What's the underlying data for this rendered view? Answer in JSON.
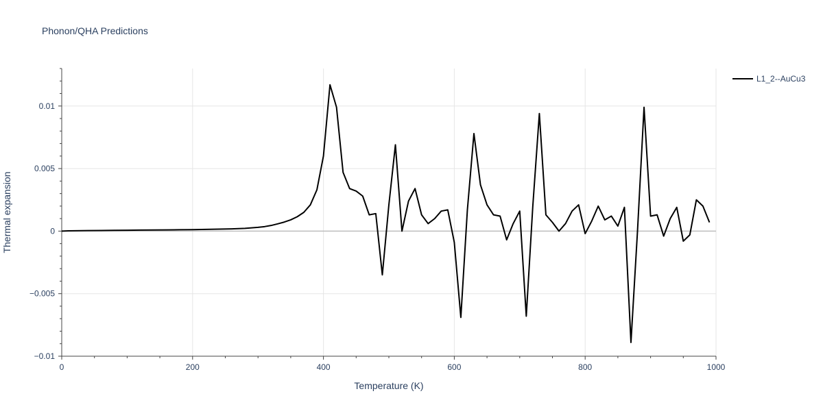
{
  "chart_data": {
    "type": "line",
    "title": "Phonon/QHA Predictions",
    "xlabel": "Temperature (K)",
    "ylabel": "Thermal expansion",
    "xlim": [
      0,
      1000
    ],
    "ylim": [
      -0.01,
      0.013
    ],
    "xticks": [
      0,
      200,
      400,
      600,
      800,
      1000
    ],
    "xtick_labels": [
      "0",
      "200",
      "400",
      "600",
      "800",
      "1000"
    ],
    "yticks": [
      -0.01,
      -0.005,
      0,
      0.005,
      0.01
    ],
    "ytick_labels": [
      "−0.01",
      "−0.005",
      "0",
      "0.005",
      "0.01"
    ],
    "grid": true,
    "legend_position": "top-right",
    "series": [
      {
        "name": "L1_2--AuCu3",
        "color": "#000000",
        "x": [
          0,
          10,
          20,
          40,
          60,
          80,
          100,
          120,
          140,
          160,
          180,
          200,
          220,
          240,
          260,
          280,
          300,
          310,
          320,
          330,
          340,
          350,
          360,
          370,
          380,
          390,
          400,
          410,
          420,
          430,
          440,
          450,
          460,
          470,
          480,
          490,
          500,
          510,
          520,
          530,
          540,
          550,
          560,
          570,
          580,
          590,
          600,
          610,
          620,
          630,
          640,
          650,
          660,
          670,
          680,
          690,
          700,
          710,
          720,
          730,
          740,
          750,
          760,
          770,
          780,
          790,
          800,
          810,
          820,
          830,
          840,
          850,
          860,
          870,
          880,
          890,
          900,
          910,
          920,
          930,
          940,
          950,
          960,
          970,
          980,
          990
        ],
        "y": [
          0.0,
          2e-05,
          3e-05,
          4e-05,
          5e-05,
          6e-05,
          7e-05,
          8e-05,
          9e-05,
          0.0001,
          0.00011,
          0.00012,
          0.00014,
          0.00016,
          0.00018,
          0.00022,
          0.0003,
          0.00036,
          0.00045,
          0.00058,
          0.00072,
          0.0009,
          0.00115,
          0.0015,
          0.0021,
          0.0033,
          0.006,
          0.0117,
          0.0099,
          0.0047,
          0.0034,
          0.0032,
          0.0028,
          0.0013,
          0.0014,
          -0.0035,
          0.0021,
          0.0069,
          0.0,
          0.0024,
          0.0034,
          0.0013,
          0.0006,
          0.001,
          0.0016,
          0.0017,
          -0.0009,
          -0.0069,
          0.0017,
          0.0078,
          0.0037,
          0.0021,
          0.0013,
          0.0012,
          -0.0007,
          0.0006,
          0.0016,
          -0.0068,
          0.002,
          0.0094,
          0.0013,
          0.0007,
          0.0,
          0.0006,
          0.0016,
          0.0021,
          -0.0002,
          0.0008,
          0.002,
          0.0009,
          0.0012,
          0.0004,
          0.0019,
          -0.0089,
          0.0,
          0.0099,
          0.0012,
          0.0013,
          -0.0004,
          0.001,
          0.0019,
          -0.0008,
          -0.0003,
          0.0025,
          0.002,
          0.0007
        ]
      }
    ]
  }
}
